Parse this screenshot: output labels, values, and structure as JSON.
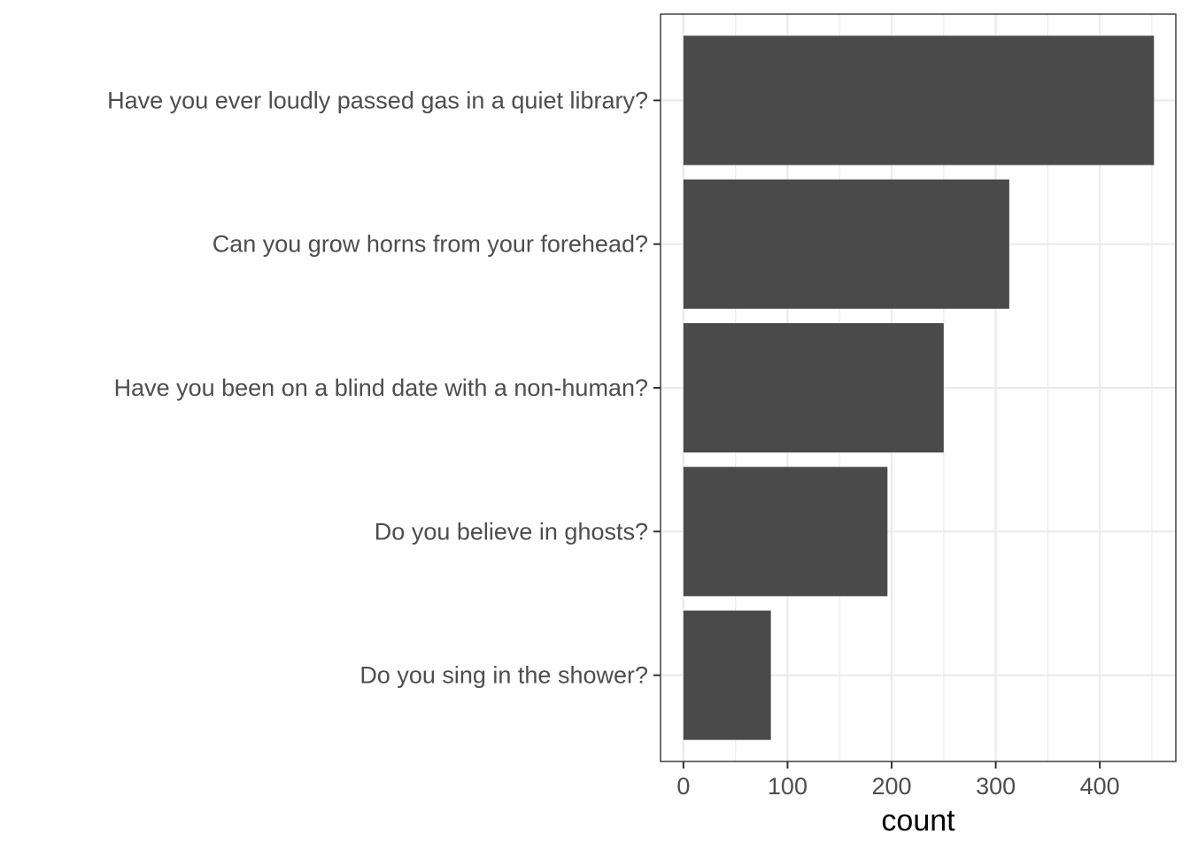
{
  "chart_data": {
    "type": "bar",
    "orientation": "horizontal",
    "categories": [
      "Do you sing in the shower?",
      "Do you believe in ghosts?",
      "Have you been on a blind date with a non-human?",
      "Can you grow horns from your forehead?",
      "Have you ever loudly passed gas in a quiet library?"
    ],
    "values": [
      84,
      196,
      250,
      313,
      452
    ],
    "xlabel": "count",
    "ylabel": "",
    "xlim": [
      -22,
      473
    ],
    "x_ticks": [
      0,
      100,
      200,
      300,
      400
    ],
    "grid": true,
    "bar_color": "#4a4a4a",
    "grid_color": "#ebebeb",
    "panel_border_color": "#333333"
  }
}
